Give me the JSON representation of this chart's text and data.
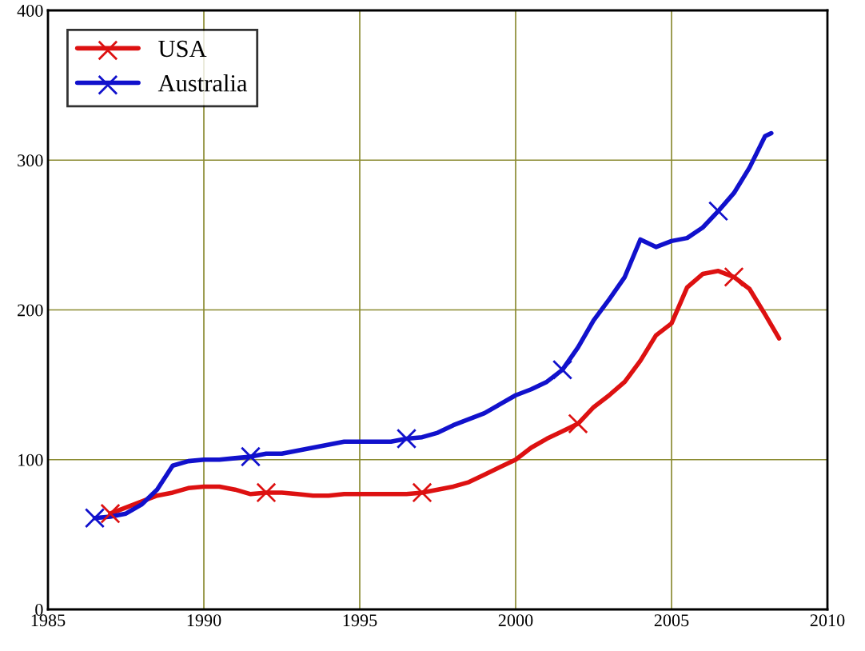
{
  "chart_data": {
    "type": "line",
    "xlim": [
      1985,
      2010
    ],
    "xticks": [
      1985,
      1990,
      1995,
      2000,
      2005,
      2010
    ],
    "ylim": [
      0,
      400
    ],
    "yticks": [
      0,
      100,
      200,
      300,
      400
    ],
    "grid": true,
    "legend": "top left",
    "line_style": "solid",
    "series": [
      {
        "name": "USA",
        "color": "#dd1111",
        "x": [
          1987,
          1987.5,
          1988,
          1988.5,
          1989,
          1989.5,
          1990,
          1990.5,
          1991,
          1991.5,
          1992,
          1992.5,
          1993,
          1993.5,
          1994,
          1994.5,
          1995,
          1995.5,
          1996,
          1996.5,
          1997,
          1997.5,
          1998,
          1998.5,
          1999,
          1999.5,
          2000,
          2000.5,
          2001,
          2001.5,
          2002,
          2002.5,
          2003,
          2003.5,
          2004,
          2004.5,
          2005,
          2005.5,
          2006,
          2006.5,
          2007,
          2007.5,
          2008,
          2008.45
        ],
        "values": [
          64,
          68,
          72,
          76,
          78,
          81,
          82,
          82,
          80,
          77,
          78,
          78,
          77,
          76,
          76,
          77,
          77,
          77,
          77,
          77,
          78,
          80,
          82,
          85,
          90,
          95,
          100,
          108,
          114,
          119,
          124,
          135,
          143,
          152,
          166,
          183,
          191,
          215,
          224,
          226,
          222,
          214,
          197,
          181
        ]
      },
      {
        "name": "Australia",
        "color": "#1111cc",
        "x": [
          1986.5,
          1987,
          1987.5,
          1988,
          1988.5,
          1989,
          1989.5,
          1990,
          1990.5,
          1991,
          1991.5,
          1992,
          1992.5,
          1993,
          1993.5,
          1994,
          1994.5,
          1995,
          1995.5,
          1996,
          1996.5,
          1997,
          1997.5,
          1998,
          1998.5,
          1999,
          1999.5,
          2000,
          2000.5,
          2001,
          2001.5,
          2002,
          2002.5,
          2003,
          2003.5,
          2004,
          2004.5,
          2005,
          2005.5,
          2006,
          2006.5,
          2007,
          2007.5,
          2008,
          2008.2
        ],
        "values": [
          61,
          62,
          64,
          70,
          80,
          96,
          99,
          100,
          100,
          101,
          102,
          104,
          104,
          106,
          108,
          110,
          112,
          112,
          112,
          112,
          114,
          115,
          118,
          123,
          127,
          131,
          137,
          143,
          147,
          152,
          160,
          175,
          193,
          207,
          222,
          247,
          242,
          246,
          248,
          255,
          266,
          278,
          295,
          316,
          318
        ]
      },
      {
        "type": "scatter",
        "color": "#dd1111",
        "marker": "cross",
        "x": [
          1987,
          1992,
          1997,
          2002,
          2007
        ],
        "values": [
          64,
          78,
          78,
          124,
          222
        ]
      },
      {
        "type": "scatter",
        "color": "#1111cc",
        "marker": "cross",
        "x": [
          1986.5,
          1991.5,
          1996.5,
          2001.5,
          2006.5
        ],
        "values": [
          61,
          102,
          114,
          160,
          266
        ]
      }
    ]
  }
}
